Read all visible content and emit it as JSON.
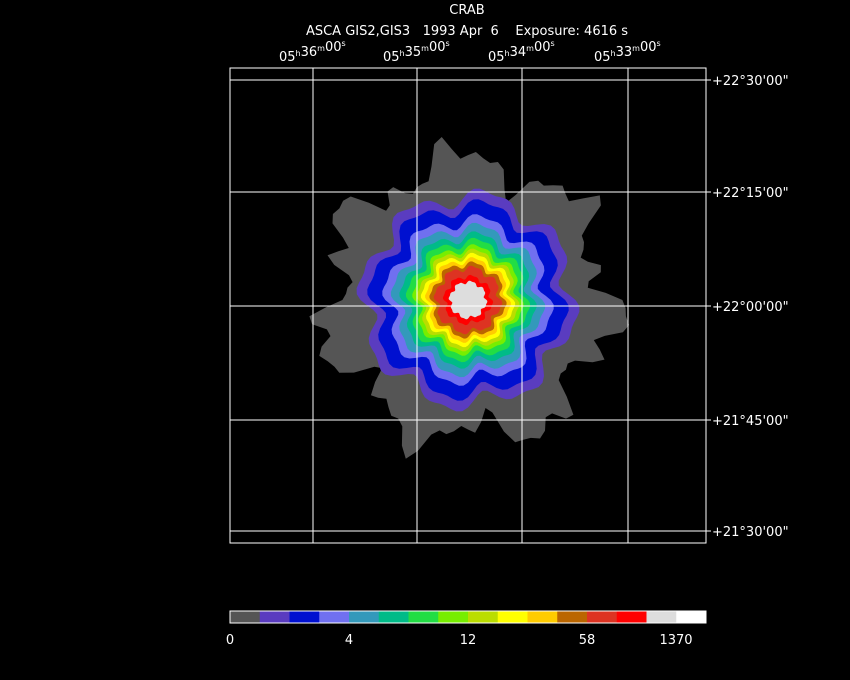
{
  "header": {
    "title": "CRAB",
    "subtitle": "ASCA GIS2,GIS3   1993 Apr  6    Exposure: 4616 s"
  },
  "ra_units": [
    "h",
    "m",
    "s"
  ],
  "ra_ticks": [
    [
      "05",
      "36",
      "00"
    ],
    [
      "05",
      "35",
      "00"
    ],
    [
      "05",
      "34",
      "00"
    ],
    [
      "05",
      "33",
      "00"
    ]
  ],
  "dec_ticks": [
    "+22°30'00\"",
    "+22°15'00\"",
    "+22°00'00\"",
    "+21°45'00\"",
    "+21°30'00\""
  ],
  "colorbar": {
    "colors": [
      "#555555",
      "#5a3cc0",
      "#0010d0",
      "#7070f0",
      "#3399bb",
      "#00bb88",
      "#22dd44",
      "#77ee00",
      "#bbdd00",
      "#ffff00",
      "#ffcc00",
      "#bb6600",
      "#dd3322",
      "#ff0000",
      "#dddddd",
      "#ffffff"
    ],
    "labels": [
      "0",
      "4",
      "12",
      "58",
      "1370"
    ]
  }
}
